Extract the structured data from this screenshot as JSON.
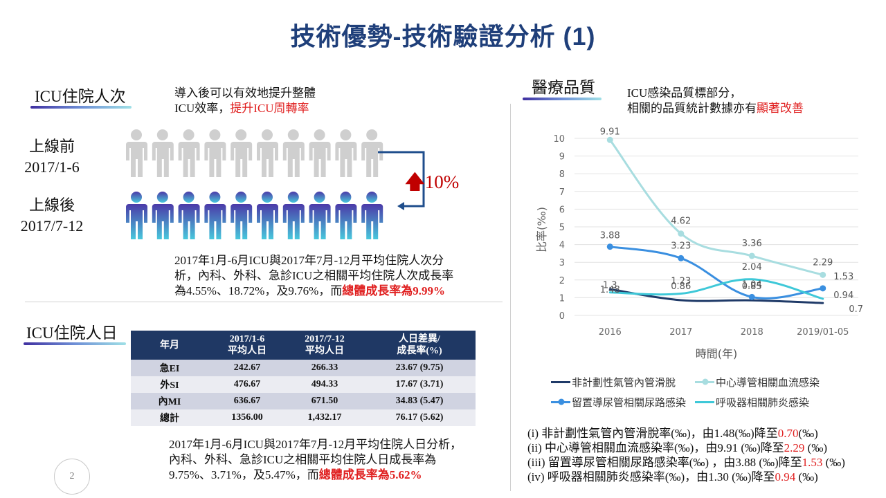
{
  "title": "技術優勢-技術驗證分析 (1)",
  "left": {
    "section1": {
      "heading": "ICU住院人次",
      "note_line1": "導入後可以有效地提升整體",
      "note_line2_prefix": "ICU效率，",
      "note_line2_red": "提升ICU周轉率",
      "before_label": "上線前",
      "before_period": "2017/1-6",
      "after_label": "上線後",
      "after_period": "2017/7-12",
      "growth": "10%",
      "analysis_line1": "2017年1月-6月ICU與2017年7月-12月平均住院人次分",
      "analysis_line2": "析，內科、外科、急診ICU之相關平均住院人次成長率",
      "analysis_line3_prefix": "為4.55%、18.72%，及9.76%，而",
      "analysis_line3_red": "總體成長率為9.99%",
      "colors": {
        "before_person": "#cfcfcf",
        "after_person_top": "#4b3aa8",
        "after_person_bottom": "#48c8dc",
        "arrow": "#1f4e8c",
        "growth": "#c00000"
      }
    },
    "section2": {
      "heading": "ICU住院人日",
      "table": {
        "headers": [
          [
            "年月"
          ],
          [
            "2017/1-6",
            "平均人日"
          ],
          [
            "2017/7-12",
            "平均人日"
          ],
          [
            "人日差異/",
            "成長率(%)"
          ]
        ],
        "rows": [
          [
            "急EI",
            "242.67",
            "266.33",
            "23.67 (9.75)"
          ],
          [
            "外SI",
            "476.67",
            "494.33",
            "17.67 (3.71)"
          ],
          [
            "內MI",
            "636.67",
            "671.50",
            "34.83 (5.47)"
          ],
          [
            "總計",
            "1356.00",
            "1,432.17",
            "76.17 (5.62)"
          ]
        ]
      },
      "analysis_line1": "2017年1月-6月ICU與2017年7月-12月平均住院人日分析，",
      "analysis_line2": "內科、外科、急診ICU之相關平均住院人日成長率為",
      "analysis_line3_prefix": "9.75%、3.71%，及5.47%，而",
      "analysis_line3_red": "總體成長率為5.62%"
    },
    "page_number": "2"
  },
  "right": {
    "heading": "醫療品質",
    "note_line1": "ICU感染品質標部分，",
    "note_line2_prefix": "相關的品質統計數據亦有",
    "note_line2_red": "顯著改善",
    "stats": [
      {
        "prefix": "(i)   非計劃性氣管內管滑脫率(‰)，由1.48(‰)降至",
        "red": "0.70",
        "suffix": "(‰)"
      },
      {
        "prefix": "(ii)  中心導管相關血流感染率(‰)，由9.91 (‰)降至",
        "red": "2.29",
        "suffix": " (‰)"
      },
      {
        "prefix": "(iii) 留置導尿管相關尿路感染率(‰) ，由3.88 (‰)降至",
        "red": "1.53",
        "suffix": " (‰)"
      },
      {
        "prefix": "(iv)  呼吸器相關肺炎感染率(‰)，由1.30 (‰)降至",
        "red": "0.94",
        "suffix": " (‰)"
      }
    ]
  },
  "chart_data": {
    "type": "line",
    "title": "",
    "xlabel": "時間(年)",
    "ylabel": "比率(‰)",
    "categories": [
      "2016",
      "2017",
      "2018",
      "2019/01-05"
    ],
    "ylim": [
      0,
      10
    ],
    "yticks": [
      0,
      1,
      2,
      3,
      4,
      5,
      6,
      7,
      8,
      9,
      10
    ],
    "grid": true,
    "legend_position": "bottom",
    "series": [
      {
        "name": "非計劃性氣管內管滑脫",
        "values": [
          1.48,
          0.86,
          0.85,
          0.7
        ],
        "labels": [
          "1.48",
          "0.86",
          "0.85",
          "0.7"
        ],
        "color": "#1f3a68",
        "marker": false
      },
      {
        "name": "中心導管相關血流感染",
        "values": [
          9.91,
          4.62,
          3.36,
          2.29
        ],
        "labels": [
          "9.91",
          "4.62",
          "3.36",
          "2.29"
        ],
        "color": "#a8dde0",
        "marker": true
      },
      {
        "name": "留置導尿管相關尿路感染",
        "values": [
          3.88,
          3.23,
          1.04,
          1.53
        ],
        "labels": [
          "3.88",
          "3.23",
          "1.04",
          "1.53"
        ],
        "color": "#3a8fe0",
        "marker": true
      },
      {
        "name": "呼吸器相關肺炎感染",
        "values": [
          1.3,
          1.23,
          2.04,
          0.94
        ],
        "labels": [
          "1.3",
          "1.23",
          "2.04",
          "0.94"
        ],
        "color": "#3ec8d8",
        "marker": false
      }
    ]
  }
}
